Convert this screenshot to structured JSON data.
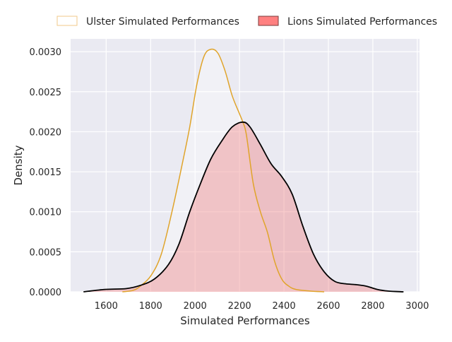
{
  "chart_data": {
    "type": "area",
    "title": "",
    "xlabel": "Simulated Performances",
    "ylabel": "Density",
    "xlim": [
      1440,
      3010
    ],
    "ylim": [
      0,
      0.00316
    ],
    "xticks": [
      1600,
      1800,
      2000,
      2200,
      2400,
      2600,
      2800,
      3000
    ],
    "yticks": [
      "0.0000",
      "0.0005",
      "0.0010",
      "0.0015",
      "0.0020",
      "0.0025",
      "0.0030"
    ],
    "grid": true,
    "legend_placement": "top-center",
    "series": [
      {
        "name": "Ulster Simulated Performances",
        "line_color": "#e0a42a",
        "fill_color": "#ffffff",
        "x": [
          1673,
          1721,
          1753,
          1801,
          1848,
          1896,
          1944,
          1976,
          2008,
          2040,
          2071,
          2103,
          2135,
          2167,
          2199,
          2215,
          2231,
          2262,
          2294,
          2326,
          2358,
          2390,
          2422,
          2454,
          2517,
          2581
        ],
        "y": [
          0,
          1.8e-05,
          7e-05,
          0.0002,
          0.00047,
          0.001,
          0.00162,
          0.00206,
          0.00259,
          0.00294,
          0.00303,
          0.00298,
          0.00276,
          0.00245,
          0.00223,
          0.00212,
          0.00196,
          0.00135,
          0.001,
          0.00074,
          0.00038,
          0.00016,
          7e-05,
          3e-05,
          1e-05,
          0
        ]
      },
      {
        "name": "Lions Simulated Performances",
        "line_color": "#000000",
        "fill_color": "#f08080",
        "x": [
          1498,
          1594,
          1689,
          1753,
          1817,
          1880,
          1928,
          1976,
          2024,
          2071,
          2119,
          2167,
          2215,
          2247,
          2294,
          2342,
          2390,
          2437,
          2485,
          2533,
          2581,
          2629,
          2677,
          2724,
          2772,
          2820,
          2868,
          2938
        ],
        "y": [
          0,
          3e-05,
          4e-05,
          8e-05,
          0.00016,
          0.00034,
          0.0006,
          0.001,
          0.00135,
          0.00166,
          0.00188,
          0.00206,
          0.00212,
          0.00206,
          0.00184,
          0.0016,
          0.00144,
          0.00122,
          0.00082,
          0.00047,
          0.00025,
          0.00013,
          0.0001,
          9e-05,
          7e-05,
          3e-05,
          1e-05,
          0
        ]
      }
    ]
  }
}
